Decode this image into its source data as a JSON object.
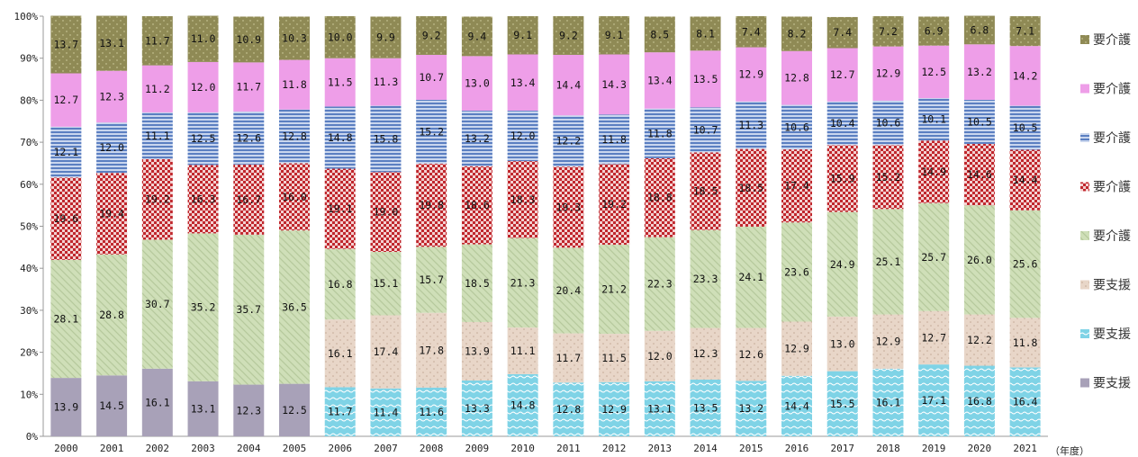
{
  "chart_data": {
    "type": "bar",
    "stacked": true,
    "x_unit_label": "（年度）",
    "categories": [
      "2000",
      "2001",
      "2002",
      "2003",
      "2004",
      "2005",
      "2006",
      "2007",
      "2008",
      "2009",
      "2010",
      "2011",
      "2012",
      "2013",
      "2014",
      "2015",
      "2016",
      "2017",
      "2018",
      "2019",
      "2020",
      "2021"
    ],
    "ylim": [
      0,
      100
    ],
    "yticks": [
      "0%",
      "10%",
      "20%",
      "30%",
      "40%",
      "50%",
      "60%",
      "70%",
      "80%",
      "90%",
      "100%"
    ],
    "grid": false,
    "legend_position": "right",
    "series": [
      {
        "name": "要支援",
        "pattern": "solid",
        "color": "#a8a1b8",
        "values": [
          13.9,
          14.5,
          16.1,
          13.1,
          12.3,
          12.5,
          null,
          null,
          null,
          null,
          null,
          null,
          null,
          null,
          null,
          null,
          null,
          null,
          null,
          null,
          null,
          null
        ]
      },
      {
        "name": "要支援",
        "pattern": "waves",
        "color": "#7fd3e6",
        "values": [
          null,
          null,
          null,
          null,
          null,
          null,
          11.7,
          11.4,
          11.6,
          13.3,
          14.8,
          12.8,
          12.9,
          13.1,
          13.5,
          13.2,
          14.4,
          15.5,
          16.1,
          17.1,
          16.8,
          16.4
        ]
      },
      {
        "name": "要支援",
        "pattern": "dots",
        "color": "#e8d6c8",
        "values": [
          null,
          null,
          null,
          null,
          null,
          null,
          16.1,
          17.4,
          17.8,
          13.9,
          11.1,
          11.7,
          11.5,
          12.0,
          12.3,
          12.6,
          12.9,
          13.0,
          12.9,
          12.7,
          12.2,
          11.8
        ]
      },
      {
        "name": "要介護",
        "pattern": "diagonal",
        "color": "#cfdfb8",
        "values": [
          28.1,
          28.8,
          30.7,
          35.2,
          35.7,
          36.5,
          16.8,
          15.1,
          15.7,
          18.5,
          21.3,
          20.4,
          21.2,
          22.3,
          23.3,
          24.1,
          23.6,
          24.9,
          25.1,
          25.7,
          26.0,
          25.6
        ]
      },
      {
        "name": "要介護",
        "pattern": "checker",
        "color": "#c0272d",
        "values": [
          19.6,
          19.4,
          19.2,
          16.3,
          16.7,
          16.0,
          19.1,
          19.0,
          19.8,
          18.6,
          18.3,
          19.3,
          19.2,
          18.8,
          18.5,
          18.5,
          17.4,
          15.9,
          15.2,
          14.9,
          14.6,
          14.4
        ]
      },
      {
        "name": "要介護",
        "pattern": "hstripes",
        "color": "#5b7fc1",
        "values": [
          12.1,
          12.0,
          11.1,
          12.5,
          12.6,
          12.8,
          14.8,
          15.8,
          15.2,
          13.2,
          12.0,
          12.2,
          11.8,
          11.8,
          10.7,
          11.3,
          10.6,
          10.4,
          10.6,
          10.1,
          10.5,
          10.5
        ]
      },
      {
        "name": "要介護",
        "pattern": "solid",
        "color": "#ee9ee8",
        "values": [
          12.7,
          12.3,
          11.2,
          12.0,
          11.7,
          11.8,
          11.5,
          11.3,
          10.7,
          13.0,
          13.4,
          14.4,
          14.3,
          13.4,
          13.5,
          12.9,
          12.8,
          12.7,
          12.9,
          12.5,
          13.2,
          14.2
        ]
      },
      {
        "name": "要介護",
        "pattern": "speckle",
        "color": "#8f8a55",
        "values": [
          13.7,
          13.1,
          11.7,
          11.0,
          10.9,
          10.3,
          10.0,
          9.9,
          9.2,
          9.4,
          9.1,
          9.2,
          9.1,
          8.5,
          8.1,
          7.4,
          8.2,
          7.4,
          7.2,
          6.9,
          6.8,
          7.1
        ]
      }
    ]
  }
}
